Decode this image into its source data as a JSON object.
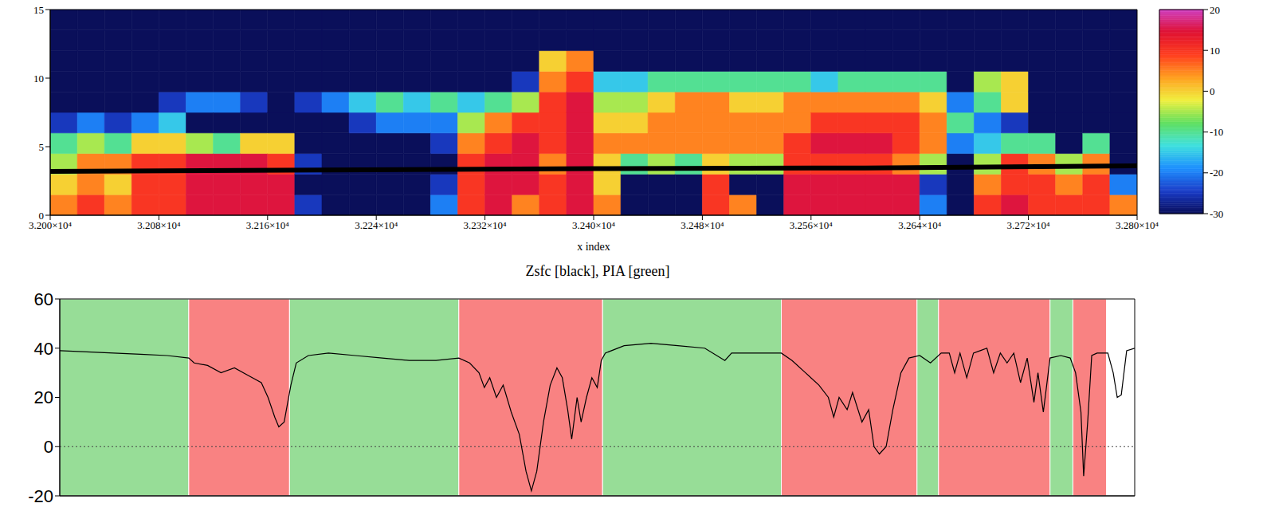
{
  "chart_data": [
    {
      "type": "heatmap",
      "xlabel": "x index",
      "xlim": [
        32000,
        32800
      ],
      "xticks": [
        {
          "value": 32000,
          "label": "3.200×10⁴"
        },
        {
          "value": 32080,
          "label": "3.208×10⁴"
        },
        {
          "value": 32160,
          "label": "3.216×10⁴"
        },
        {
          "value": 32240,
          "label": "3.224×10⁴"
        },
        {
          "value": 32320,
          "label": "3.232×10⁴"
        },
        {
          "value": 32400,
          "label": "3.240×10⁴"
        },
        {
          "value": 32480,
          "label": "3.248×10⁴"
        },
        {
          "value": 32560,
          "label": "3.256×10⁴"
        },
        {
          "value": 32640,
          "label": "3.264×10⁴"
        },
        {
          "value": 32720,
          "label": "3.272×10⁴"
        },
        {
          "value": 32800,
          "label": "3.280×10⁴"
        }
      ],
      "ylim": [
        0,
        15
      ],
      "yticks": [
        0,
        5,
        10,
        15
      ],
      "x_edges": [
        32000,
        32020,
        32040,
        32060,
        32080,
        32100,
        32120,
        32140,
        32160,
        32180,
        32200,
        32220,
        32240,
        32260,
        32280,
        32300,
        32320,
        32340,
        32360,
        32380,
        32400,
        32420,
        32440,
        32460,
        32480,
        32500,
        32520,
        32540,
        32560,
        32580,
        32600,
        32620,
        32640,
        32660,
        32680,
        32700,
        32720,
        32740,
        32760,
        32780,
        32800
      ],
      "y_edges": [
        0,
        1.5,
        3,
        4.5,
        6,
        7.5,
        9,
        10.5,
        12,
        13.5,
        15
      ],
      "cells": [
        [
          5,
          0,
          -5,
          -10,
          -25,
          -30,
          -30,
          -30,
          -30,
          -30
        ],
        [
          10,
          5,
          5,
          -5,
          -20,
          -30,
          -30,
          -30,
          -30,
          -30
        ],
        [
          5,
          0,
          5,
          -10,
          -25,
          -30,
          -30,
          -30,
          -30,
          -30
        ],
        [
          10,
          10,
          10,
          0,
          -20,
          -30,
          -30,
          -30,
          -30,
          -30
        ],
        [
          10,
          10,
          10,
          0,
          -15,
          -25,
          -30,
          -30,
          -30,
          -30
        ],
        [
          15,
          15,
          15,
          -5,
          -30,
          -20,
          -30,
          -30,
          -30,
          -30
        ],
        [
          15,
          15,
          15,
          -10,
          -30,
          -20,
          -30,
          -30,
          -30,
          -30
        ],
        [
          15,
          15,
          15,
          0,
          -30,
          -25,
          -30,
          -30,
          -30,
          -30
        ],
        [
          15,
          15,
          10,
          0,
          -30,
          -30,
          -30,
          -30,
          -30,
          -30
        ],
        [
          -25,
          -30,
          -25,
          -30,
          -30,
          -25,
          -30,
          -30,
          -30,
          -30
        ],
        [
          -30,
          -30,
          -30,
          -30,
          -30,
          -20,
          -30,
          -30,
          -30,
          -30
        ],
        [
          -30,
          -30,
          -30,
          -30,
          -25,
          -15,
          -30,
          -30,
          -30,
          -30
        ],
        [
          -30,
          -30,
          -30,
          -30,
          -20,
          -10,
          -30,
          -30,
          -30,
          -30
        ],
        [
          -30,
          -30,
          -30,
          -30,
          -20,
          -15,
          -30,
          -30,
          -30,
          -30
        ],
        [
          -20,
          -25,
          -30,
          -25,
          -20,
          -10,
          -30,
          -30,
          -30,
          -30
        ],
        [
          10,
          10,
          10,
          5,
          -5,
          -15,
          -30,
          -30,
          -30,
          -30
        ],
        [
          15,
          15,
          15,
          10,
          5,
          -10,
          -30,
          -30,
          -30,
          -30
        ],
        [
          5,
          15,
          15,
          15,
          10,
          -5,
          -25,
          -30,
          -30,
          -30
        ],
        [
          10,
          10,
          5,
          10,
          10,
          10,
          5,
          0,
          -30,
          -30
        ],
        [
          15,
          15,
          15,
          15,
          15,
          15,
          10,
          5,
          -30,
          -30
        ],
        [
          5,
          0,
          0,
          5,
          0,
          -5,
          -15,
          -30,
          -30,
          -30
        ],
        [
          -30,
          -30,
          -10,
          5,
          0,
          -5,
          -15,
          -30,
          -30,
          -30
        ],
        [
          -30,
          -30,
          -5,
          5,
          5,
          0,
          -10,
          -30,
          -30,
          -30
        ],
        [
          -30,
          -30,
          -10,
          5,
          5,
          5,
          -10,
          -30,
          -30,
          -30
        ],
        [
          10,
          10,
          0,
          5,
          5,
          5,
          -10,
          -30,
          -30,
          -30
        ],
        [
          5,
          -30,
          -5,
          5,
          5,
          0,
          -10,
          -30,
          -30,
          -30
        ],
        [
          -30,
          -30,
          -5,
          5,
          5,
          0,
          -10,
          -30,
          -30,
          -30
        ],
        [
          15,
          15,
          10,
          10,
          5,
          5,
          -10,
          -30,
          -30,
          -30
        ],
        [
          15,
          15,
          10,
          15,
          10,
          5,
          -15,
          -30,
          -30,
          -30
        ],
        [
          15,
          15,
          10,
          15,
          10,
          5,
          -10,
          -30,
          -30,
          -30
        ],
        [
          15,
          15,
          10,
          15,
          10,
          5,
          -10,
          -30,
          -30,
          -30
        ],
        [
          15,
          15,
          5,
          10,
          10,
          5,
          -10,
          -30,
          -30,
          -30
        ],
        [
          -20,
          -25,
          -5,
          5,
          5,
          0,
          -10,
          -30,
          -30,
          -30
        ],
        [
          -30,
          -30,
          -30,
          -20,
          -10,
          -20,
          -30,
          -30,
          -30,
          -30
        ],
        [
          10,
          5,
          -5,
          -15,
          -20,
          -10,
          -5,
          -30,
          -30,
          -30
        ],
        [
          15,
          10,
          10,
          -10,
          -25,
          0,
          0,
          -30,
          -30,
          -30
        ],
        [
          10,
          10,
          5,
          -10,
          -30,
          -30,
          -30,
          -30,
          -30,
          -30
        ],
        [
          10,
          5,
          -5,
          -30,
          -30,
          -30,
          -30,
          -30,
          -30,
          -30
        ],
        [
          10,
          10,
          5,
          -10,
          -30,
          -30,
          -30,
          -30,
          -30,
          -30
        ],
        [
          5,
          -20,
          -30,
          -30,
          -30,
          -30,
          -30,
          -30,
          -30,
          -30
        ]
      ],
      "colorbar_range": [
        -30,
        20
      ],
      "colorbar_ticks": [
        -30,
        -20,
        -10,
        0,
        10,
        20
      ],
      "x": [
        32000,
        32200,
        32400,
        32600,
        32800
      ],
      "series": [
        {
          "color": "#000000",
          "values": [
            3.2,
            3.3,
            3.4,
            3.45,
            3.6
          ]
        }
      ]
    },
    {
      "type": "line",
      "title": "Zsfc [black], PIA [green]",
      "xlim": [
        32000,
        32800
      ],
      "ylim": [
        -20,
        60
      ],
      "yticks": [
        -20,
        0,
        20,
        40,
        60
      ],
      "tick_labels": "y",
      "bands": [
        {
          "x0": 32000,
          "x1": 32096,
          "color": "#97dd97"
        },
        {
          "x0": 32096,
          "x1": 32171,
          "color": "#f98282"
        },
        {
          "x0": 32171,
          "x1": 32297,
          "color": "#97dd97"
        },
        {
          "x0": 32297,
          "x1": 32404,
          "color": "#f98282"
        },
        {
          "x0": 32404,
          "x1": 32537,
          "color": "#97dd97"
        },
        {
          "x0": 32537,
          "x1": 32638,
          "color": "#f98282"
        },
        {
          "x0": 32638,
          "x1": 32654,
          "color": "#97dd97"
        },
        {
          "x0": 32654,
          "x1": 32737,
          "color": "#f98282"
        },
        {
          "x0": 32737,
          "x1": 32754,
          "color": "#97dd97"
        },
        {
          "x0": 32754,
          "x1": 32779,
          "color": "#f98282"
        }
      ],
      "x": [
        32000,
        32020,
        32040,
        32060,
        32080,
        32096,
        32100,
        32110,
        32120,
        32130,
        32140,
        32150,
        32155,
        32160,
        32163,
        32167,
        32172,
        32176,
        32185,
        32200,
        32220,
        32240,
        32260,
        32280,
        32297,
        32305,
        32312,
        32316,
        32320,
        32325,
        32330,
        32336,
        32342,
        32347,
        32351,
        32355,
        32360,
        32365,
        32370,
        32374,
        32378,
        32381,
        32385,
        32388,
        32392,
        32396,
        32400,
        32403,
        32406,
        32420,
        32440,
        32460,
        32480,
        32495,
        32500,
        32520,
        32537,
        32545,
        32555,
        32565,
        32572,
        32576,
        32580,
        32586,
        32590,
        32597,
        32602,
        32606,
        32610,
        32615,
        32620,
        32626,
        32632,
        32640,
        32648,
        32656,
        32662,
        32666,
        32670,
        32675,
        32680,
        32685,
        32690,
        32695,
        32700,
        32705,
        32710,
        32715,
        32720,
        32725,
        32728,
        32732,
        32737,
        32745,
        32752,
        32756,
        32760,
        32762,
        32765,
        32768,
        32772,
        32780,
        32784,
        32787,
        32790,
        32794,
        32800
      ],
      "series": [
        {
          "color": "#000000",
          "values": [
            39,
            38.5,
            38,
            37.5,
            37,
            36,
            34,
            33,
            30,
            32,
            29,
            26,
            20,
            12,
            8,
            10,
            25,
            34,
            37,
            38,
            37,
            36,
            35,
            35,
            36,
            34,
            30,
            24,
            28,
            20,
            25,
            14,
            5,
            -10,
            -18,
            -10,
            10,
            25,
            32,
            28,
            15,
            3,
            20,
            10,
            20,
            28,
            24,
            35,
            38,
            41,
            42,
            41,
            40,
            35,
            38,
            38,
            38,
            35,
            30,
            25,
            20,
            12,
            20,
            15,
            22,
            10,
            15,
            0,
            -3,
            0,
            15,
            30,
            36,
            37,
            34,
            38,
            38,
            30,
            38,
            28,
            38,
            39,
            40,
            30,
            38,
            34,
            38,
            26,
            36,
            18,
            30,
            14,
            36,
            37,
            36,
            30,
            14,
            -12,
            10,
            37,
            38,
            38,
            30,
            20,
            21,
            39,
            40
          ]
        }
      ]
    }
  ]
}
